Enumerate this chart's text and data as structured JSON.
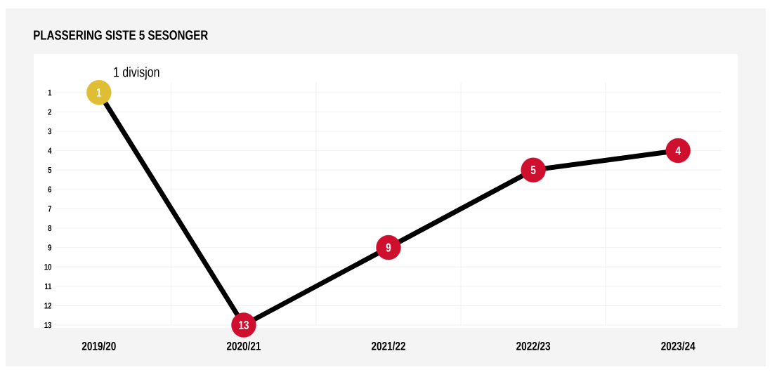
{
  "chart_data": {
    "type": "line",
    "title": "PLASSERING SISTE 5 SESONGER",
    "categories": [
      "2019/20",
      "2020/21",
      "2021/22",
      "2022/23",
      "2023/24"
    ],
    "series": [
      {
        "color": "#000000",
        "colors": [
          "#dfbe33",
          "#cf0f2e",
          "#cf0f2e",
          "#cf0f2e",
          "#cf0f2e"
        ],
        "values": [
          1,
          13,
          9,
          5,
          4
        ]
      }
    ],
    "ylim": [
      13,
      0.5
    ],
    "yticks": [
      1,
      2,
      3,
      4,
      5,
      6,
      7,
      8,
      9,
      10,
      11,
      12,
      13
    ],
    "grid": true,
    "marker": "circle",
    "line_style": "solid",
    "data_labels": true,
    "annotations": [
      {
        "text": "1 divisjon",
        "x": "2019/20",
        "y": 1
      }
    ]
  }
}
